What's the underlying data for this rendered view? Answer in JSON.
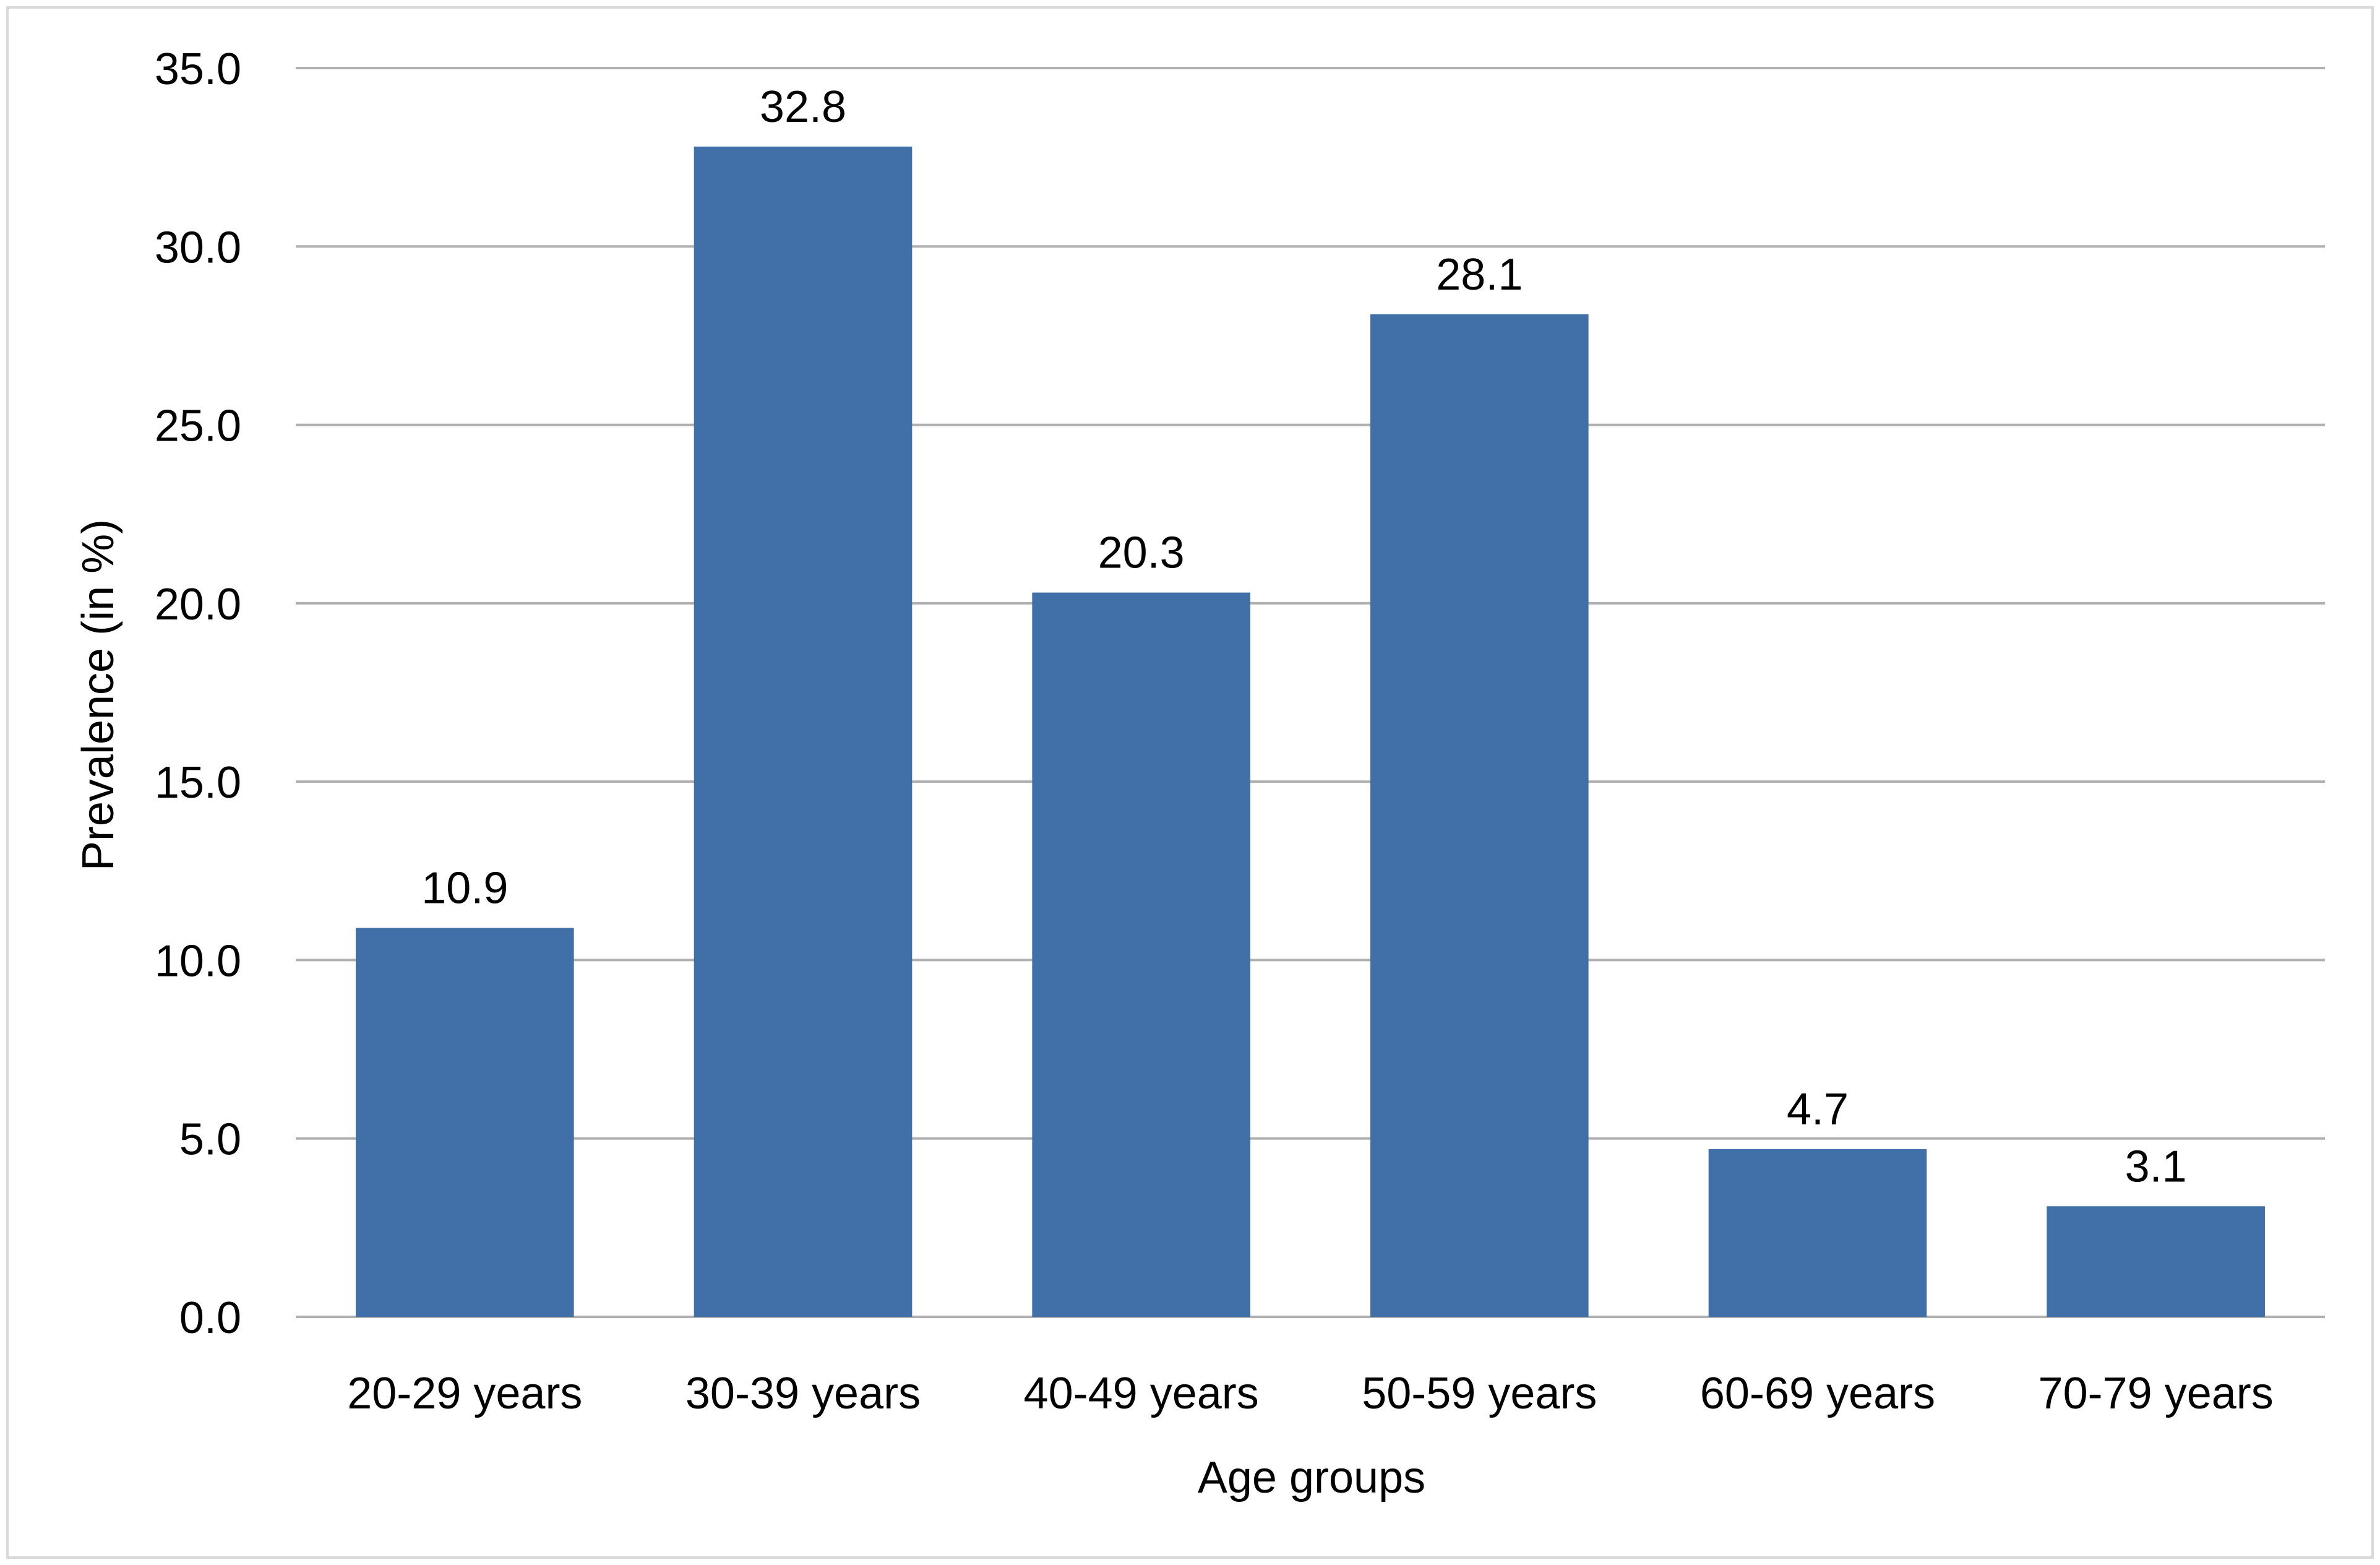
{
  "chart_data": {
    "type": "bar",
    "title": "",
    "xlabel": "Age groups",
    "ylabel": "Prevalence (in %)",
    "categories": [
      "20-29 years",
      "30-39 years",
      "40-49 years",
      "50-59 years",
      "60-69 years",
      "70-79 years"
    ],
    "values": [
      10.9,
      32.8,
      20.3,
      28.1,
      4.7,
      3.1
    ],
    "data_labels": [
      "10.9",
      "32.8",
      "20.3",
      "28.1",
      "4.7",
      "3.1"
    ],
    "ylim": [
      0,
      35
    ],
    "yticks": [
      0,
      5,
      10,
      15,
      20,
      25,
      30,
      35
    ],
    "ytick_labels": [
      "0.0",
      "5.0",
      "10.0",
      "15.0",
      "20.0",
      "25.0",
      "30.0",
      "35.0"
    ],
    "grid": true,
    "legend": "none",
    "colors": {
      "bar": "#416fa8",
      "grid": "#b0b0b0",
      "frame": "#d9d9d9"
    }
  }
}
